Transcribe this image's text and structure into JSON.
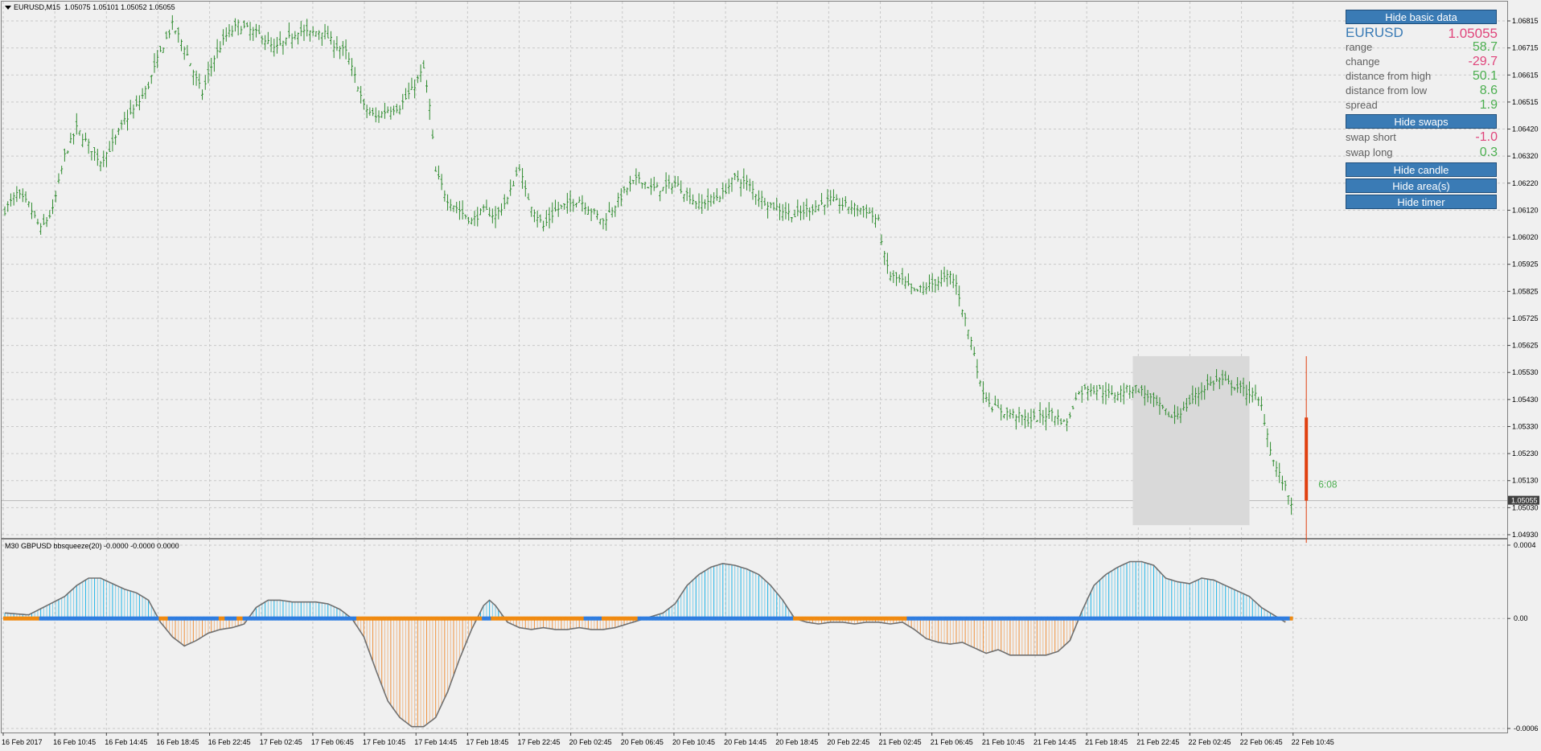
{
  "main_chart": {
    "header": {
      "symbol_timeframe": "EURUSD,M15",
      "ohlc": "1.05075 1.05101 1.05052 1.05055"
    },
    "price_axis_labels": [
      "1.06815",
      "1.06715",
      "1.06615",
      "1.06515",
      "1.06420",
      "1.06320",
      "1.06220",
      "1.06120",
      "1.06020",
      "1.05925",
      "1.05825",
      "1.05725",
      "1.05625",
      "1.05530",
      "1.05430",
      "1.05330",
      "1.05230",
      "1.05130",
      "1.05030",
      "1.04930"
    ],
    "current_price_tag": "1.05055",
    "candle_timer": "6:08",
    "bar_color": "#2e8b2e",
    "area_color": "#d9d9d9",
    "current_candle_color": "#e04010"
  },
  "info_panel": {
    "btn_hide_basic": "Hide basic data",
    "symbol": "EURUSD",
    "price": "1.05055",
    "rows": [
      {
        "label": "range",
        "value": "58.7",
        "tone": "pos"
      },
      {
        "label": "change",
        "value": "-29.7",
        "tone": "neg"
      },
      {
        "label": "distance from high",
        "value": "50.1",
        "tone": "pos"
      },
      {
        "label": "distance from low",
        "value": "8.6",
        "tone": "pos"
      },
      {
        "label": "spread",
        "value": "1.9",
        "tone": "pos"
      }
    ],
    "btn_hide_swaps": "Hide swaps",
    "swap_rows": [
      {
        "label": "swap short",
        "value": "-1.0",
        "tone": "neg"
      },
      {
        "label": "swap long",
        "value": "0.3",
        "tone": "pos"
      }
    ],
    "btn_hide_candle": "Hide candle",
    "btn_hide_areas": "Hide area(s)",
    "btn_hide_timer": "Hide timer",
    "accent_color": "#3a7bb5",
    "positive_color": "#4caf50",
    "negative_color": "#e0457b"
  },
  "indicator": {
    "header": "M30 GBPUSD bbsqueeze(20) -0.0000 -0.0000 0.0000",
    "axis_labels": [
      "0.0004",
      "0.00",
      "-0.0006"
    ],
    "positive_color": "#1cb4e8",
    "negative_color": "#f0903a",
    "line_color": "#707070",
    "dot_blue": "#2f7de0",
    "dot_orange": "#f08a10"
  },
  "time_axis": [
    "16 Feb 2017",
    "16 Feb 10:45",
    "16 Feb 14:45",
    "16 Feb 18:45",
    "16 Feb 22:45",
    "17 Feb 02:45",
    "17 Feb 06:45",
    "17 Feb 10:45",
    "17 Feb 14:45",
    "17 Feb 18:45",
    "17 Feb 22:45",
    "20 Feb 02:45",
    "20 Feb 06:45",
    "20 Feb 10:45",
    "20 Feb 14:45",
    "20 Feb 18:45",
    "20 Feb 22:45",
    "21 Feb 02:45",
    "21 Feb 06:45",
    "21 Feb 10:45",
    "21 Feb 14:45",
    "21 Feb 18:45",
    "21 Feb 22:45",
    "22 Feb 02:45",
    "22 Feb 06:45",
    "22 Feb 10:45"
  ],
  "price_path": [
    [
      0,
      1.0612
    ],
    [
      4,
      1.0618
    ],
    [
      8,
      1.0614
    ],
    [
      12,
      1.0605
    ],
    [
      16,
      1.0612
    ],
    [
      20,
      1.0632
    ],
    [
      24,
      1.0642
    ],
    [
      28,
      1.0636
    ],
    [
      32,
      1.063
    ],
    [
      36,
      1.0636
    ],
    [
      40,
      1.0645
    ],
    [
      44,
      1.065
    ],
    [
      48,
      1.0658
    ],
    [
      52,
      1.067
    ],
    [
      56,
      1.068
    ],
    [
      60,
      1.0672
    ],
    [
      64,
      1.066
    ],
    [
      66,
      1.0655
    ],
    [
      70,
      1.0668
    ],
    [
      74,
      1.0676
    ],
    [
      78,
      1.068
    ],
    [
      82,
      1.0678
    ],
    [
      86,
      1.0676
    ],
    [
      90,
      1.0671
    ],
    [
      94,
      1.0674
    ],
    [
      98,
      1.0678
    ],
    [
      102,
      1.0677
    ],
    [
      106,
      1.0678
    ],
    [
      110,
      1.0673
    ],
    [
      114,
      1.067
    ],
    [
      118,
      1.0658
    ],
    [
      120,
      1.065
    ],
    [
      124,
      1.0646
    ],
    [
      128,
      1.0649
    ],
    [
      132,
      1.065
    ],
    [
      136,
      1.0656
    ],
    [
      140,
      1.0664
    ],
    [
      142,
      1.065
    ],
    [
      144,
      1.0626
    ],
    [
      148,
      1.0616
    ],
    [
      152,
      1.0612
    ],
    [
      156,
      1.0608
    ],
    [
      160,
      1.0612
    ],
    [
      164,
      1.061
    ],
    [
      168,
      1.0616
    ],
    [
      170,
      1.0622
    ],
    [
      172,
      1.0628
    ],
    [
      174,
      1.0619
    ],
    [
      176,
      1.0614
    ],
    [
      180,
      1.0606
    ],
    [
      184,
      1.0612
    ],
    [
      188,
      1.0614
    ],
    [
      192,
      1.0616
    ],
    [
      196,
      1.0612
    ],
    [
      200,
      1.0608
    ],
    [
      204,
      1.0614
    ],
    [
      208,
      1.062
    ],
    [
      212,
      1.0624
    ],
    [
      216,
      1.062
    ],
    [
      220,
      1.062
    ],
    [
      224,
      1.0622
    ],
    [
      228,
      1.0618
    ],
    [
      232,
      1.0614
    ],
    [
      236,
      1.0616
    ],
    [
      240,
      1.0618
    ],
    [
      244,
      1.0624
    ],
    [
      248,
      1.0622
    ],
    [
      252,
      1.0617
    ],
    [
      256,
      1.0614
    ],
    [
      260,
      1.0612
    ],
    [
      264,
      1.061
    ],
    [
      268,
      1.0612
    ],
    [
      272,
      1.0614
    ],
    [
      276,
      1.0616
    ],
    [
      280,
      1.0614
    ],
    [
      284,
      1.0613
    ],
    [
      288,
      1.0612
    ],
    [
      292,
      1.0608
    ],
    [
      294,
      1.0595
    ],
    [
      296,
      1.0588
    ],
    [
      300,
      1.0586
    ],
    [
      304,
      1.0582
    ],
    [
      308,
      1.0584
    ],
    [
      312,
      1.0586
    ],
    [
      316,
      1.0588
    ],
    [
      318,
      1.0585
    ],
    [
      320,
      1.0576
    ],
    [
      324,
      1.056
    ],
    [
      326,
      1.0548
    ],
    [
      330,
      1.054
    ],
    [
      334,
      1.0538
    ],
    [
      338,
      1.0537
    ],
    [
      342,
      1.0535
    ],
    [
      346,
      1.0536
    ],
    [
      350,
      1.0538
    ],
    [
      354,
      1.0534
    ],
    [
      356,
      1.0536
    ],
    [
      358,
      1.0544
    ],
    [
      362,
      1.0547
    ],
    [
      366,
      1.0546
    ],
    [
      370,
      1.0544
    ],
    [
      374,
      1.0546
    ],
    [
      378,
      1.0547
    ],
    [
      382,
      1.0544
    ],
    [
      386,
      1.054
    ],
    [
      390,
      1.0536
    ],
    [
      394,
      1.0539
    ],
    [
      398,
      1.0544
    ],
    [
      402,
      1.0548
    ],
    [
      406,
      1.055
    ],
    [
      410,
      1.0548
    ],
    [
      414,
      1.0546
    ],
    [
      418,
      1.0544
    ],
    [
      420,
      1.054
    ],
    [
      422,
      1.053
    ],
    [
      424,
      1.052
    ],
    [
      428,
      1.051
    ],
    [
      430,
      1.0505
    ]
  ],
  "indicator_path": [
    [
      0,
      3e-05
    ],
    [
      8,
      2e-05
    ],
    [
      14,
      7e-05
    ],
    [
      20,
      0.00012
    ],
    [
      24,
      0.00018
    ],
    [
      28,
      0.00022
    ],
    [
      32,
      0.00022
    ],
    [
      36,
      0.00019
    ],
    [
      40,
      0.00016
    ],
    [
      44,
      0.00014
    ],
    [
      48,
      0.0001
    ],
    [
      52,
      -2e-05
    ],
    [
      56,
      -0.0001
    ],
    [
      60,
      -0.00015
    ],
    [
      64,
      -0.00012
    ],
    [
      68,
      -8e-05
    ],
    [
      72,
      -6e-05
    ],
    [
      76,
      -5e-05
    ],
    [
      80,
      -3e-05
    ],
    [
      84,
      6e-05
    ],
    [
      88,
      0.0001
    ],
    [
      92,
      0.0001
    ],
    [
      96,
      9e-05
    ],
    [
      100,
      9e-05
    ],
    [
      104,
      9e-05
    ],
    [
      108,
      8e-05
    ],
    [
      112,
      5e-05
    ],
    [
      116,
      0.0
    ],
    [
      120,
      -0.0001
    ],
    [
      124,
      -0.00028
    ],
    [
      128,
      -0.00045
    ],
    [
      132,
      -0.00054
    ],
    [
      136,
      -0.00059
    ],
    [
      140,
      -0.00059
    ],
    [
      144,
      -0.00054
    ],
    [
      148,
      -0.0004
    ],
    [
      152,
      -0.00022
    ],
    [
      156,
      -6e-05
    ],
    [
      160,
      7e-05
    ],
    [
      162,
      0.0001
    ],
    [
      164,
      7e-05
    ],
    [
      168,
      -2e-05
    ],
    [
      172,
      -5e-05
    ],
    [
      176,
      -6e-05
    ],
    [
      180,
      -5e-05
    ],
    [
      184,
      -6e-05
    ],
    [
      188,
      -6e-05
    ],
    [
      192,
      -5e-05
    ],
    [
      196,
      -6e-05
    ],
    [
      200,
      -6e-05
    ],
    [
      204,
      -5e-05
    ],
    [
      208,
      -3e-05
    ],
    [
      212,
      -1e-05
    ],
    [
      216,
      1e-05
    ],
    [
      220,
      3e-05
    ],
    [
      224,
      8e-05
    ],
    [
      228,
      0.00018
    ],
    [
      232,
      0.00024
    ],
    [
      236,
      0.00028
    ],
    [
      240,
      0.0003
    ],
    [
      244,
      0.00029
    ],
    [
      248,
      0.00027
    ],
    [
      252,
      0.00024
    ],
    [
      256,
      0.00018
    ],
    [
      260,
      0.0001
    ],
    [
      264,
      0.0
    ],
    [
      268,
      -2e-05
    ],
    [
      272,
      -3e-05
    ],
    [
      276,
      -2e-05
    ],
    [
      280,
      -2e-05
    ],
    [
      284,
      -3e-05
    ],
    [
      288,
      -2e-05
    ],
    [
      292,
      -2e-05
    ],
    [
      296,
      -3e-05
    ],
    [
      300,
      -2e-05
    ],
    [
      304,
      -6e-05
    ],
    [
      308,
      -0.00011
    ],
    [
      312,
      -0.00013
    ],
    [
      316,
      -0.00014
    ],
    [
      320,
      -0.00013
    ],
    [
      324,
      -0.00016
    ],
    [
      328,
      -0.00019
    ],
    [
      332,
      -0.00017
    ],
    [
      336,
      -0.0002
    ],
    [
      340,
      -0.0002
    ],
    [
      344,
      -0.0002
    ],
    [
      348,
      -0.0002
    ],
    [
      352,
      -0.00018
    ],
    [
      356,
      -0.00012
    ],
    [
      360,
      4e-05
    ],
    [
      364,
      0.00018
    ],
    [
      368,
      0.00024
    ],
    [
      372,
      0.00028
    ],
    [
      376,
      0.00031
    ],
    [
      380,
      0.00031
    ],
    [
      384,
      0.00029
    ],
    [
      388,
      0.00022
    ],
    [
      392,
      0.0002
    ],
    [
      396,
      0.00019
    ],
    [
      400,
      0.00022
    ],
    [
      404,
      0.00021
    ],
    [
      408,
      0.00018
    ],
    [
      412,
      0.00015
    ],
    [
      416,
      0.00012
    ],
    [
      420,
      6e-05
    ],
    [
      424,
      2e-05
    ],
    [
      428,
      -2e-05
    ]
  ],
  "dot_color_switches": [
    [
      0,
      "orange"
    ],
    [
      12,
      "blue"
    ],
    [
      52,
      "orange"
    ],
    [
      55,
      "blue"
    ],
    [
      72,
      "orange"
    ],
    [
      74,
      "blue"
    ],
    [
      78,
      "orange"
    ],
    [
      80,
      "blue"
    ],
    [
      118,
      "orange"
    ],
    [
      160,
      "blue"
    ],
    [
      163,
      "orange"
    ],
    [
      194,
      "blue"
    ],
    [
      200,
      "orange"
    ],
    [
      212,
      "blue"
    ],
    [
      264,
      "orange"
    ],
    [
      302,
      "blue"
    ],
    [
      430,
      "orange"
    ]
  ]
}
